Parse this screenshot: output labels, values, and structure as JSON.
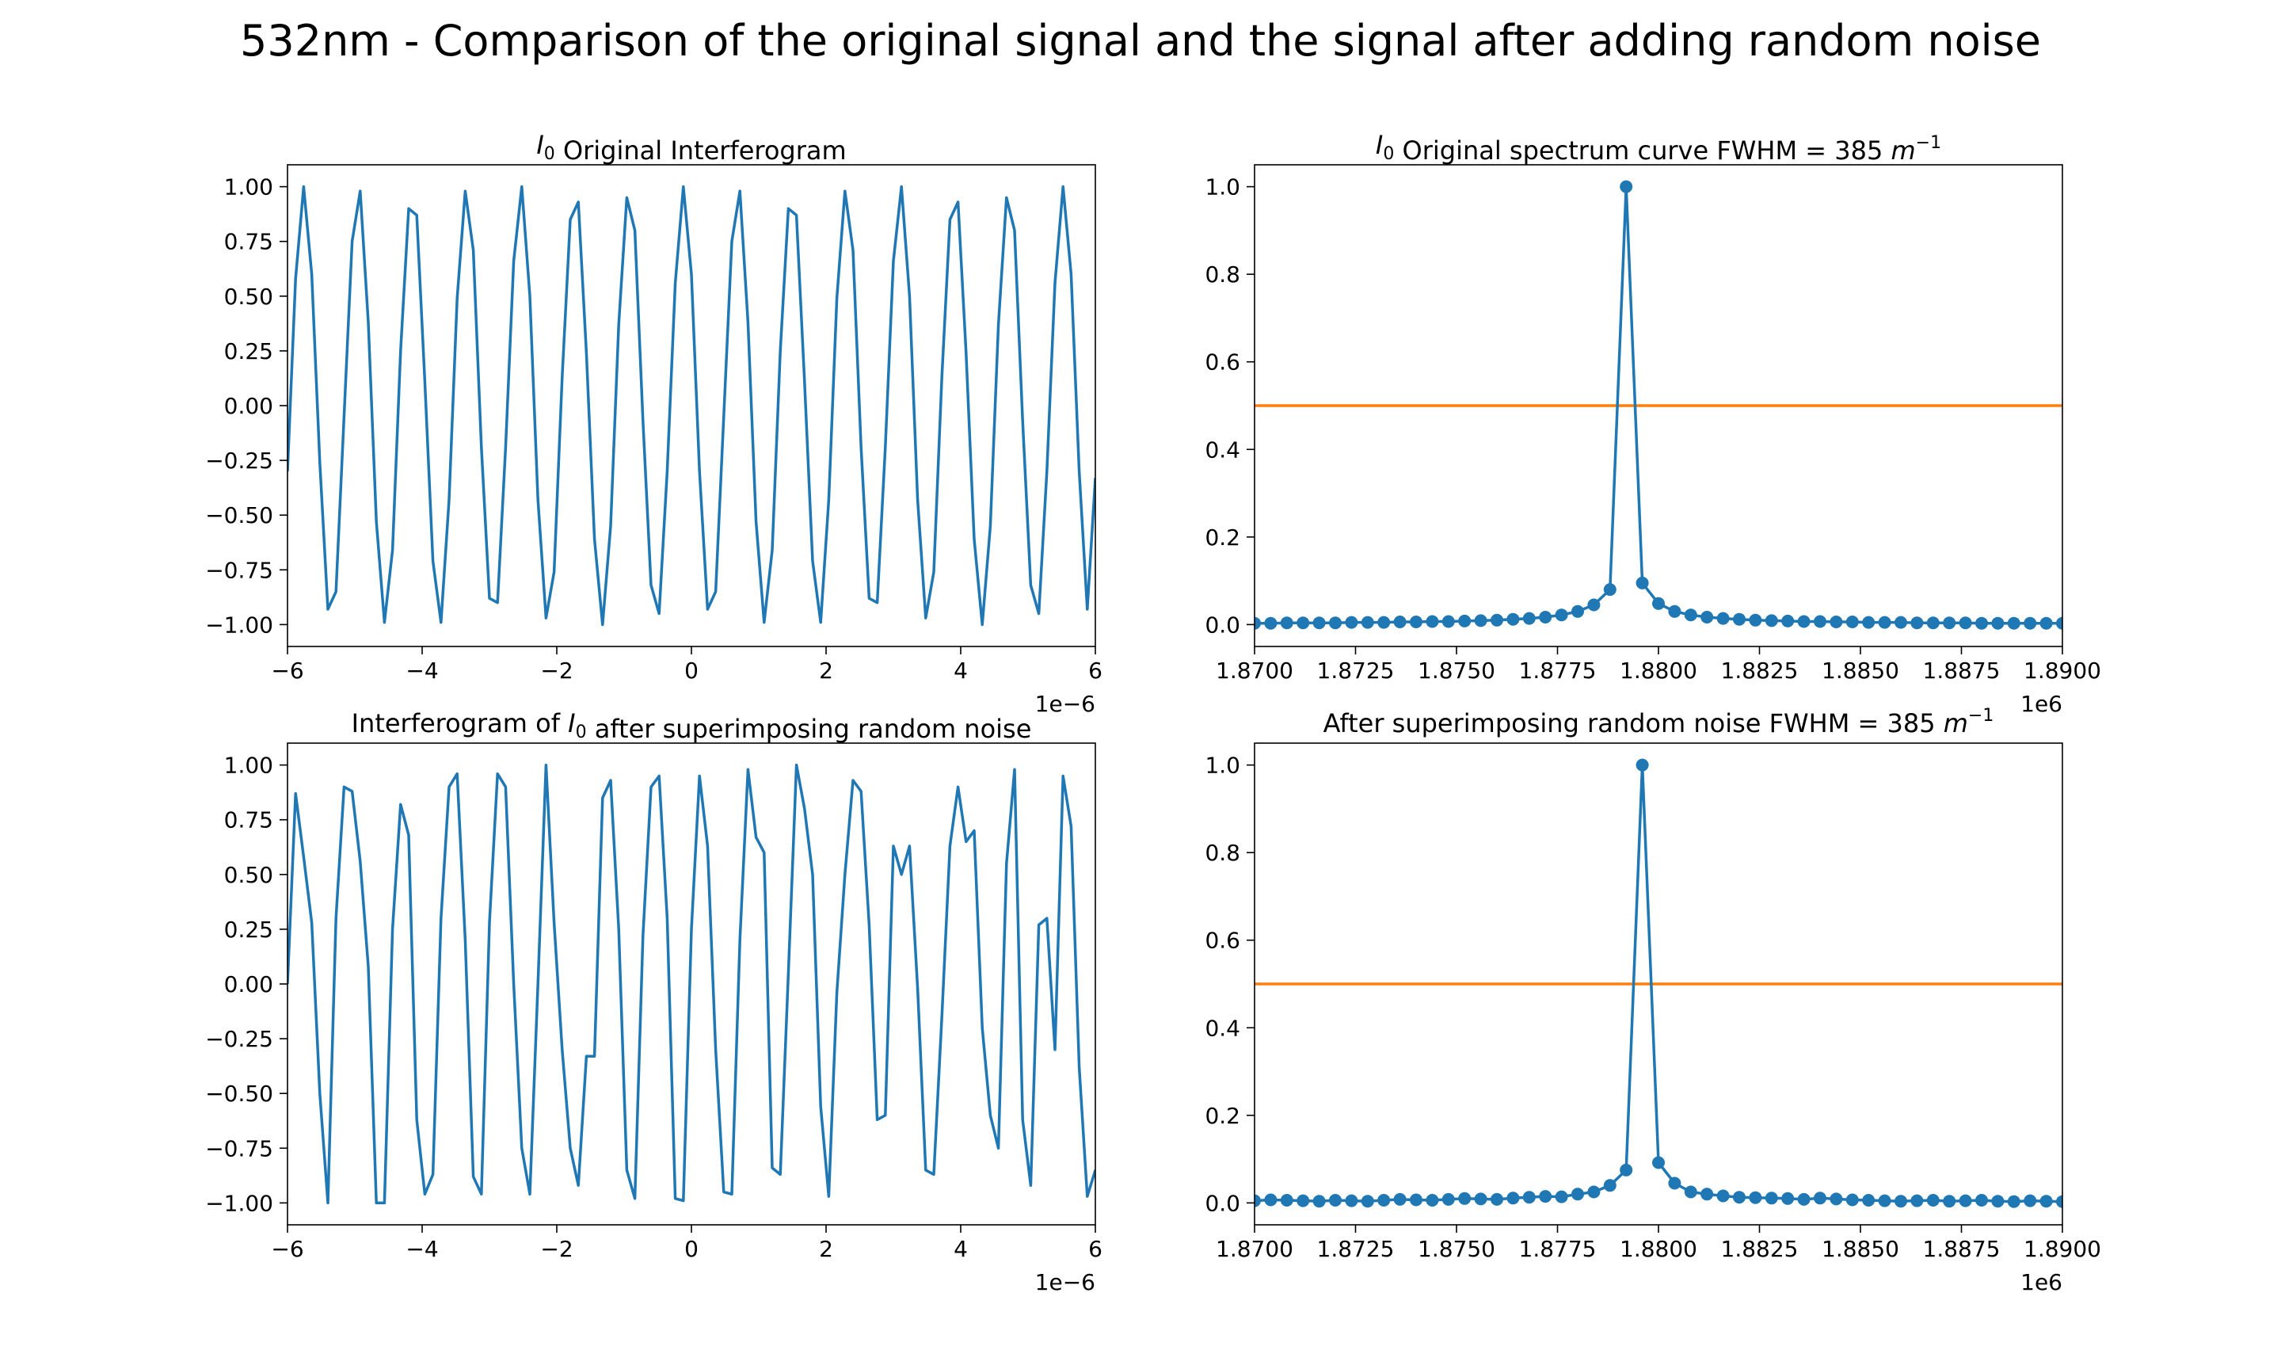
{
  "figure": {
    "suptitle": "532nm - Comparison of the original signal and the signal after adding random noise"
  },
  "chart_data": [
    {
      "type": "line",
      "title_prefix": "I",
      "title_subscript": "0",
      "title_rest": " Original Interferogram",
      "x_offset_label": "1e−6",
      "xlim": [
        -6,
        6
      ],
      "ylim": [
        -1.1,
        1.1
      ],
      "xticks": [
        -6,
        -4,
        -2,
        0,
        2,
        4,
        6
      ],
      "xtick_labels": [
        "−6",
        "−4",
        "−2",
        "0",
        "2",
        "4",
        "6"
      ],
      "yticks": [
        1.0,
        0.75,
        0.5,
        0.25,
        0.0,
        -0.25,
        -0.5,
        -0.75,
        -1.0
      ],
      "ytick_labels": [
        "1.00",
        "0.75",
        "0.50",
        "0.25",
        "0.00",
        "−0.25",
        "−0.50",
        "−0.75",
        "−1.00"
      ],
      "grid": false,
      "color": "#1f77b4",
      "series": [
        {
          "x": [
            -6.0,
            -5.88,
            -5.76,
            -5.64,
            -5.52,
            -5.4,
            -5.28,
            -5.16,
            -5.04,
            -4.92,
            -4.8,
            -4.68,
            -4.56,
            -4.44,
            -4.32,
            -4.2,
            -4.08,
            -3.96,
            -3.84,
            -3.72,
            -3.6,
            -3.48,
            -3.36,
            -3.24,
            -3.12,
            -3.0,
            -2.88,
            -2.76,
            -2.64,
            -2.52,
            -2.4,
            -2.28,
            -2.16,
            -2.04,
            -1.92,
            -1.8,
            -1.68,
            -1.56,
            -1.44,
            -1.32,
            -1.2,
            -1.08,
            -0.96,
            -0.84,
            -0.72,
            -0.6,
            -0.48,
            -0.36,
            -0.24,
            -0.12,
            0.0,
            0.12,
            0.24,
            0.36,
            0.48,
            0.6,
            0.72,
            0.84,
            0.96,
            1.08,
            1.2,
            1.32,
            1.44,
            1.56,
            1.68,
            1.8,
            1.92,
            2.04,
            2.16,
            2.28,
            2.4,
            2.52,
            2.64,
            2.76,
            2.88,
            3.0,
            3.12,
            3.24,
            3.36,
            3.48,
            3.6,
            3.72,
            3.84,
            3.96,
            4.08,
            4.2,
            4.32,
            4.44,
            4.56,
            4.68,
            4.8,
            4.92,
            5.04,
            5.16,
            5.28,
            5.4,
            5.52,
            5.64,
            5.76,
            5.88,
            6.0
          ],
          "y": [
            -0.3,
            0.58,
            1.0,
            0.6,
            -0.26,
            -0.93,
            -0.85,
            -0.05,
            0.75,
            0.98,
            0.38,
            -0.53,
            -0.99,
            -0.66,
            0.25,
            0.9,
            0.87,
            0.11,
            -0.71,
            -0.99,
            -0.43,
            0.49,
            0.98,
            0.71,
            -0.19,
            -0.88,
            -0.9,
            -0.19,
            0.66,
            1.0,
            0.5,
            -0.43,
            -0.97,
            -0.76,
            0.13,
            0.85,
            0.93,
            0.24,
            -0.61,
            -1.0,
            -0.55,
            0.37,
            0.95,
            0.8,
            -0.07,
            -0.82,
            -0.95,
            -0.3,
            0.56,
            1.0,
            0.6,
            -0.3,
            -0.93,
            -0.85,
            -0.05,
            0.75,
            0.98,
            0.38,
            -0.53,
            -0.99,
            -0.66,
            0.25,
            0.9,
            0.87,
            0.11,
            -0.71,
            -0.99,
            -0.43,
            0.49,
            0.98,
            0.71,
            -0.19,
            -0.88,
            -0.9,
            -0.19,
            0.66,
            1.0,
            0.5,
            -0.43,
            -0.97,
            -0.76,
            0.13,
            0.85,
            0.93,
            0.24,
            -0.61,
            -1.0,
            -0.55,
            0.37,
            0.95,
            0.8,
            -0.07,
            -0.82,
            -0.95,
            -0.3,
            0.56,
            1.0,
            0.6,
            -0.3,
            -0.93,
            -0.33
          ]
        }
      ]
    },
    {
      "type": "line",
      "title_prefix": "I",
      "title_subscript": "0",
      "title_rest": " Original spectrum curve FWHM = 385 ",
      "title_unit": "m",
      "title_unit_sup": "−1",
      "x_offset_label": "1e6",
      "xlim": [
        1.87,
        1.89
      ],
      "ylim": [
        -0.05,
        1.05
      ],
      "xticks": [
        1.87,
        1.8725,
        1.875,
        1.8775,
        1.88,
        1.8825,
        1.885,
        1.8875,
        1.89
      ],
      "xtick_labels": [
        "1.8700",
        "1.8725",
        "1.8750",
        "1.8775",
        "1.8800",
        "1.8825",
        "1.8850",
        "1.8875",
        "1.8900"
      ],
      "yticks": [
        0.0,
        0.2,
        0.4,
        0.6,
        0.8,
        1.0
      ],
      "ytick_labels": [
        "0.0",
        "0.2",
        "0.4",
        "0.6",
        "0.8",
        "1.0"
      ],
      "grid": false,
      "color": "#1f77b4",
      "hline": {
        "y": 0.5,
        "color": "#ff7f0e"
      },
      "series": [
        {
          "x": [
            1.87,
            1.8704,
            1.8708,
            1.8712,
            1.8716,
            1.872,
            1.8724,
            1.8728,
            1.8732,
            1.8736,
            1.874,
            1.8744,
            1.8748,
            1.8752,
            1.8756,
            1.876,
            1.8764,
            1.8768,
            1.8772,
            1.8776,
            1.878,
            1.8784,
            1.8788,
            1.8792,
            1.8796,
            1.88,
            1.8804,
            1.8808,
            1.8812,
            1.8816,
            1.882,
            1.8824,
            1.8828,
            1.8832,
            1.8836,
            1.884,
            1.8844,
            1.8848,
            1.8852,
            1.8856,
            1.886,
            1.8864,
            1.8868,
            1.8872,
            1.8876,
            1.888,
            1.8884,
            1.8888,
            1.8892,
            1.8896,
            1.89
          ],
          "y": [
            0.003,
            0.003,
            0.004,
            0.004,
            0.004,
            0.004,
            0.005,
            0.005,
            0.005,
            0.006,
            0.006,
            0.007,
            0.007,
            0.008,
            0.009,
            0.01,
            0.012,
            0.014,
            0.017,
            0.022,
            0.03,
            0.045,
            0.08,
            1.0,
            0.095,
            0.048,
            0.03,
            0.022,
            0.017,
            0.014,
            0.012,
            0.01,
            0.009,
            0.008,
            0.007,
            0.007,
            0.006,
            0.006,
            0.005,
            0.005,
            0.005,
            0.004,
            0.004,
            0.004,
            0.004,
            0.003,
            0.003,
            0.003,
            0.003,
            0.003,
            0.003
          ]
        }
      ]
    },
    {
      "type": "line",
      "title_prefix": "Interferogram of ",
      "title_var": "I",
      "title_subscript": "0",
      "title_rest": " after superimposing random noise",
      "x_offset_label": "1e−6",
      "xlim": [
        -6,
        6
      ],
      "ylim": [
        -1.1,
        1.1
      ],
      "xticks": [
        -6,
        -4,
        -2,
        0,
        2,
        4,
        6
      ],
      "xtick_labels": [
        "−6",
        "−4",
        "−2",
        "0",
        "2",
        "4",
        "6"
      ],
      "yticks": [
        1.0,
        0.75,
        0.5,
        0.25,
        0.0,
        -0.25,
        -0.5,
        -0.75,
        -1.0
      ],
      "ytick_labels": [
        "1.00",
        "0.75",
        "0.50",
        "0.25",
        "0.00",
        "−0.25",
        "−0.50",
        "−0.75",
        "−1.00"
      ],
      "grid": false,
      "color": "#1f77b4",
      "series": [
        {
          "x": [
            -6.0,
            -5.88,
            -5.76,
            -5.64,
            -5.52,
            -5.4,
            -5.28,
            -5.16,
            -5.04,
            -4.92,
            -4.8,
            -4.68,
            -4.56,
            -4.44,
            -4.32,
            -4.2,
            -4.08,
            -3.96,
            -3.84,
            -3.72,
            -3.6,
            -3.48,
            -3.36,
            -3.24,
            -3.12,
            -3.0,
            -2.88,
            -2.76,
            -2.64,
            -2.52,
            -2.4,
            -2.28,
            -2.16,
            -2.04,
            -1.92,
            -1.8,
            -1.68,
            -1.56,
            -1.44,
            -1.32,
            -1.2,
            -1.08,
            -0.96,
            -0.84,
            -0.72,
            -0.6,
            -0.48,
            -0.36,
            -0.24,
            -0.12,
            0.0,
            0.12,
            0.24,
            0.36,
            0.48,
            0.6,
            0.72,
            0.84,
            0.96,
            1.08,
            1.2,
            1.32,
            1.44,
            1.56,
            1.68,
            1.8,
            1.92,
            2.04,
            2.16,
            2.28,
            2.4,
            2.52,
            2.64,
            2.76,
            2.88,
            3.0,
            3.12,
            3.24,
            3.36,
            3.48,
            3.6,
            3.72,
            3.84,
            3.96,
            4.08,
            4.2,
            4.32,
            4.44,
            4.56,
            4.68,
            4.8,
            4.92,
            5.04,
            5.16,
            5.28,
            5.4,
            5.52,
            5.64,
            5.76,
            5.88,
            6.0
          ],
          "y": [
            0.0,
            0.87,
            0.58,
            0.28,
            -0.5,
            -1.0,
            0.3,
            0.9,
            0.88,
            0.56,
            0.08,
            -1.0,
            -1.0,
            0.25,
            0.82,
            0.68,
            -0.62,
            -0.96,
            -0.87,
            0.3,
            0.9,
            0.96,
            0.2,
            -0.88,
            -0.96,
            0.28,
            0.96,
            0.9,
            0.0,
            -0.75,
            -0.96,
            0.0,
            1.0,
            0.28,
            -0.3,
            -0.75,
            -0.92,
            -0.33,
            -0.33,
            0.85,
            0.93,
            0.25,
            -0.85,
            -0.98,
            0.22,
            0.9,
            0.95,
            0.3,
            -0.98,
            -0.99,
            0.25,
            0.95,
            0.63,
            -0.3,
            -0.95,
            -0.96,
            0.2,
            0.98,
            0.67,
            0.6,
            -0.84,
            -0.87,
            0.05,
            1.0,
            0.8,
            0.5,
            -0.56,
            -0.97,
            -0.04,
            0.5,
            0.93,
            0.88,
            0.27,
            -0.62,
            -0.6,
            0.63,
            0.5,
            0.63,
            -0.02,
            -0.85,
            -0.87,
            -0.15,
            0.63,
            0.9,
            0.65,
            0.7,
            -0.2,
            -0.6,
            -0.75,
            0.55,
            0.98,
            -0.62,
            -0.92,
            0.27,
            0.3,
            -0.3,
            0.95,
            0.72,
            -0.38,
            -0.97,
            -0.85
          ]
        }
      ]
    },
    {
      "type": "line",
      "title_rest": "After superimposing random noise FWHM = 385 ",
      "title_unit": "m",
      "title_unit_sup": "−1",
      "x_offset_label": "1e6",
      "xlim": [
        1.87,
        1.89
      ],
      "ylim": [
        -0.05,
        1.05
      ],
      "xticks": [
        1.87,
        1.8725,
        1.875,
        1.8775,
        1.88,
        1.8825,
        1.885,
        1.8875,
        1.89
      ],
      "xtick_labels": [
        "1.8700",
        "1.8725",
        "1.8750",
        "1.8775",
        "1.8800",
        "1.8825",
        "1.8850",
        "1.8875",
        "1.8900"
      ],
      "yticks": [
        0.0,
        0.2,
        0.4,
        0.6,
        0.8,
        1.0
      ],
      "ytick_labels": [
        "0.0",
        "0.2",
        "0.4",
        "0.6",
        "0.8",
        "1.0"
      ],
      "grid": false,
      "color": "#1f77b4",
      "hline": {
        "y": 0.5,
        "color": "#ff7f0e"
      },
      "series": [
        {
          "x": [
            1.87,
            1.8704,
            1.8708,
            1.8712,
            1.8716,
            1.872,
            1.8724,
            1.8728,
            1.8732,
            1.8736,
            1.874,
            1.8744,
            1.8748,
            1.8752,
            1.8756,
            1.876,
            1.8764,
            1.8768,
            1.8772,
            1.8776,
            1.878,
            1.8784,
            1.8788,
            1.8792,
            1.8796,
            1.88,
            1.8804,
            1.8808,
            1.8812,
            1.8816,
            1.882,
            1.8824,
            1.8828,
            1.8832,
            1.8836,
            1.884,
            1.8844,
            1.8848,
            1.8852,
            1.8856,
            1.886,
            1.8864,
            1.8868,
            1.8872,
            1.8876,
            1.888,
            1.8884,
            1.8888,
            1.8892,
            1.8896,
            1.89
          ],
          "y": [
            0.005,
            0.007,
            0.006,
            0.005,
            0.004,
            0.006,
            0.005,
            0.004,
            0.006,
            0.008,
            0.007,
            0.006,
            0.008,
            0.01,
            0.009,
            0.008,
            0.011,
            0.013,
            0.015,
            0.014,
            0.02,
            0.025,
            0.04,
            0.075,
            1.0,
            0.092,
            0.045,
            0.025,
            0.02,
            0.016,
            0.013,
            0.012,
            0.011,
            0.01,
            0.008,
            0.011,
            0.009,
            0.007,
            0.006,
            0.005,
            0.004,
            0.005,
            0.006,
            0.004,
            0.005,
            0.006,
            0.004,
            0.003,
            0.005,
            0.004,
            0.003
          ]
        }
      ]
    }
  ]
}
